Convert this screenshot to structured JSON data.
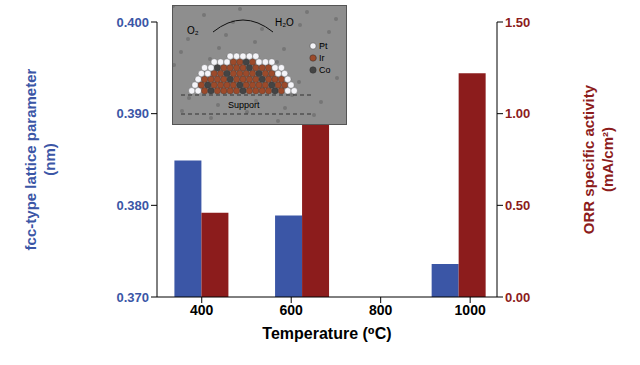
{
  "chart_data": {
    "type": "bar",
    "x_label": "Temperature (⁰C)",
    "y_label": "fcc-type lattice parameter (nm)",
    "y2_label": "ORR specific activity (mA/cm²)",
    "x": [
      400,
      625,
      975
    ],
    "xlim": [
      300,
      1060
    ],
    "xticks": [
      400,
      600,
      800,
      1000
    ],
    "ylim": [
      0.37,
      0.4
    ],
    "yticks": [
      {
        "value": 0.37,
        "label": "0.370"
      },
      {
        "value": 0.38,
        "label": "0.380"
      },
      {
        "value": 0.39,
        "label": "0.390"
      },
      {
        "value": 0.4,
        "label": "0.400"
      }
    ],
    "y2lim": [
      0,
      1.5
    ],
    "y2ticks": [
      {
        "value": 0,
        "label": "0.00"
      },
      {
        "value": 0.5,
        "label": "0.50"
      },
      {
        "value": 1,
        "label": "1.00"
      },
      {
        "value": 1.5,
        "label": "1.50"
      }
    ],
    "series": [
      {
        "color": "#3b56a6",
        "values": [
          0.3849,
          0.3789,
          0.3736
        ]
      },
      {
        "color": "#8c1c1c",
        "values": [
          0.46,
          1.14,
          1.22
        ],
        "axis": "y2"
      }
    ],
    "grid": false,
    "annotations": [
      "O₂",
      "H₂O",
      "Support",
      "Pt",
      "Ir",
      "Co"
    ]
  }
}
